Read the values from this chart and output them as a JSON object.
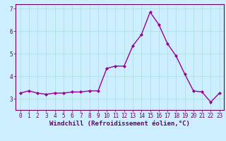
{
  "x": [
    0,
    1,
    2,
    3,
    4,
    5,
    6,
    7,
    8,
    9,
    10,
    11,
    12,
    13,
    14,
    15,
    16,
    17,
    18,
    19,
    20,
    21,
    22,
    23
  ],
  "y": [
    3.25,
    3.35,
    3.25,
    3.2,
    3.25,
    3.25,
    3.3,
    3.3,
    3.35,
    3.35,
    4.35,
    4.45,
    4.45,
    5.35,
    5.85,
    6.85,
    6.3,
    5.45,
    4.9,
    4.1,
    3.35,
    3.3,
    2.85,
    3.25
  ],
  "line_color": "#990099",
  "marker": "D",
  "marker_size": 2.0,
  "bg_color": "#cceeff",
  "grid_color": "#aadddd",
  "xlabel": "Windchill (Refroidissement éolien,°C)",
  "ylim": [
    2.5,
    7.2
  ],
  "xlim": [
    -0.5,
    23.5
  ],
  "yticks": [
    3,
    4,
    5,
    6,
    7
  ],
  "xticks": [
    0,
    1,
    2,
    3,
    4,
    5,
    6,
    7,
    8,
    9,
    10,
    11,
    12,
    13,
    14,
    15,
    16,
    17,
    18,
    19,
    20,
    21,
    22,
    23
  ],
  "tick_fontsize": 5.5,
  "xlabel_fontsize": 6.5,
  "axis_color": "#660066",
  "linewidth": 1.0
}
